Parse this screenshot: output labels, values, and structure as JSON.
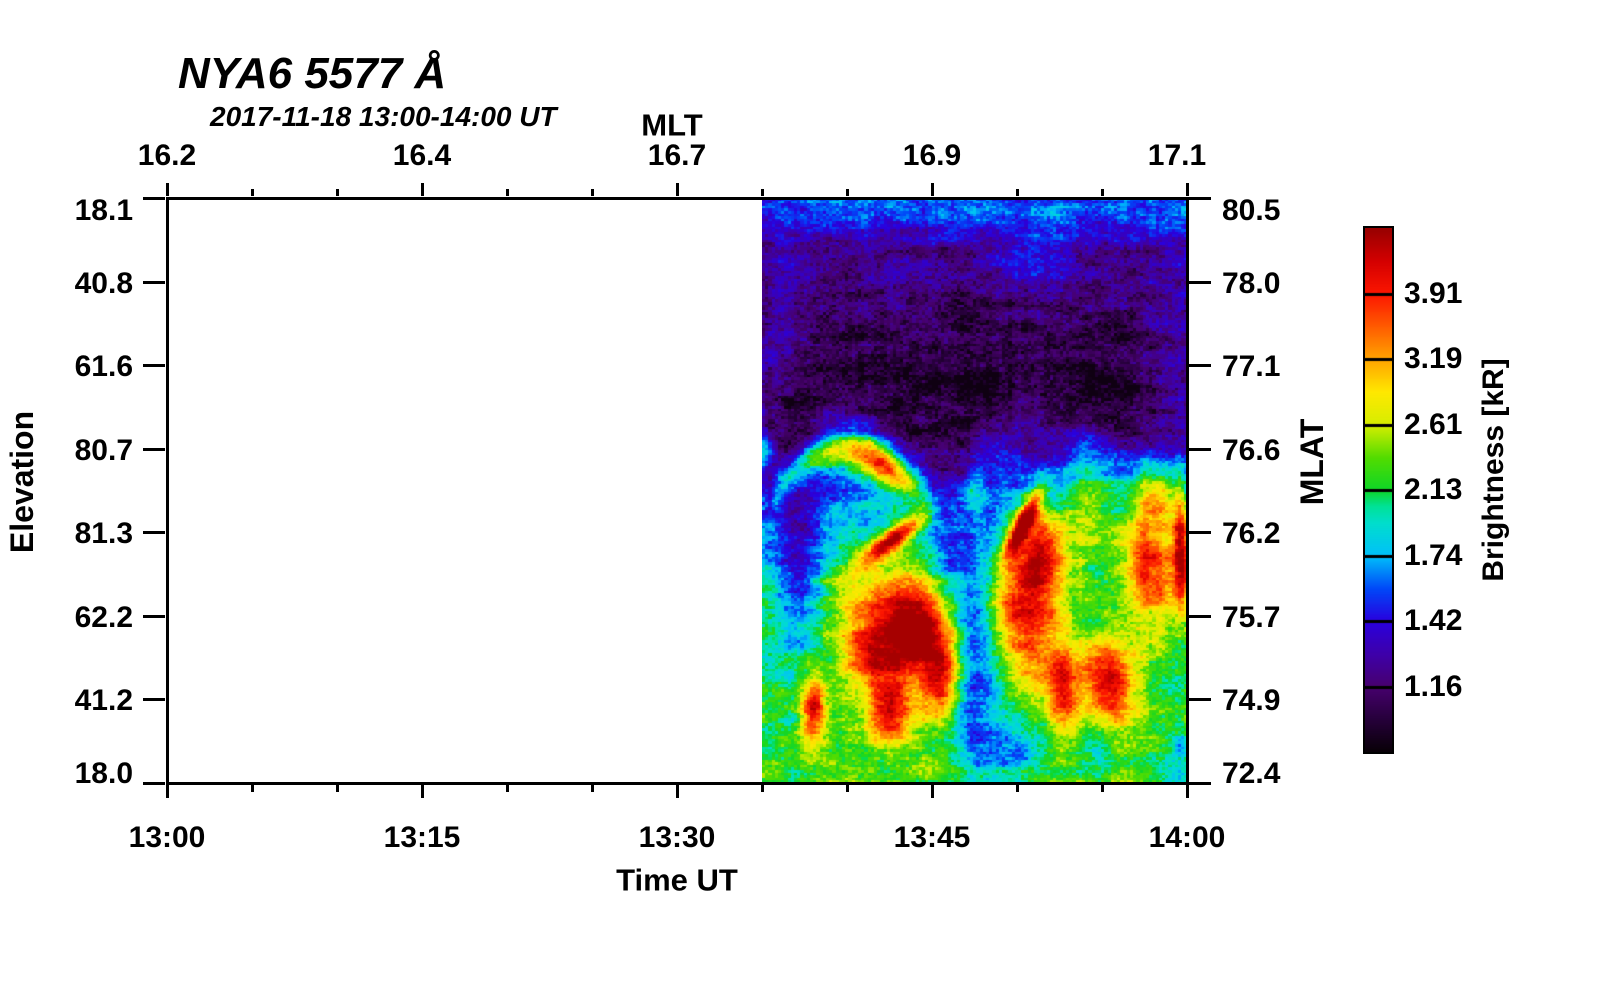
{
  "page": {
    "background": "#ffffff"
  },
  "chart_data": {
    "type": "heatmap",
    "title": "NYA6 5577 Å",
    "subtitle": "2017-11-18 13:00-14:00 UT",
    "station": "NYA6",
    "emission_line_angstrom": "5577",
    "axes": {
      "top": {
        "label": "MLT",
        "tick_labels": [
          "16.2",
          "16.4",
          "16.7",
          "16.9",
          "17.1"
        ],
        "minor_ticks_per_interval": 2
      },
      "bottom": {
        "label": "Time UT",
        "tick_labels": [
          "13:00",
          "13:15",
          "13:30",
          "13:45",
          "14:00"
        ],
        "minor_ticks_per_interval": 2
      },
      "left": {
        "label": "Elevation",
        "tick_labels": [
          "18.1",
          "40.8",
          "61.6",
          "80.7",
          "81.3",
          "62.2",
          "41.2",
          "18.0"
        ]
      },
      "right": {
        "label": "MLAT",
        "tick_labels": [
          "80.5",
          "78.0",
          "77.1",
          "76.6",
          "76.2",
          "75.7",
          "74.9",
          "72.4"
        ]
      }
    },
    "colorbar": {
      "label": "Brightness [kR]",
      "tick_labels": [
        "3.91",
        "3.19",
        "2.61",
        "2.13",
        "1.74",
        "1.42",
        "1.16"
      ],
      "n_segments": 8,
      "scale": "log"
    },
    "data_coverage": {
      "start": "13:35",
      "end": "14:00",
      "start_fraction": 0.5833
    },
    "colormap_stops": [
      [
        0.0,
        [
          8,
          0,
          6
        ]
      ],
      [
        0.0625,
        [
          38,
          0,
          58
        ]
      ],
      [
        0.125,
        [
          71,
          0,
          110
        ]
      ],
      [
        0.1875,
        [
          62,
          0,
          170
        ]
      ],
      [
        0.25,
        [
          42,
          0,
          222
        ]
      ],
      [
        0.3125,
        [
          0,
          72,
          248
        ]
      ],
      [
        0.375,
        [
          0,
          192,
          250
        ]
      ],
      [
        0.4375,
        [
          0,
          222,
          205
        ]
      ],
      [
        0.47,
        [
          0,
          226,
          150
        ]
      ],
      [
        0.5,
        [
          14,
          214,
          40
        ]
      ],
      [
        0.5625,
        [
          82,
          220,
          0
        ]
      ],
      [
        0.625,
        [
          214,
          238,
          0
        ]
      ],
      [
        0.6875,
        [
          255,
          232,
          0
        ]
      ],
      [
        0.75,
        [
          255,
          164,
          0
        ]
      ],
      [
        0.8125,
        [
          255,
          92,
          0
        ]
      ],
      [
        0.875,
        [
          252,
          22,
          0
        ]
      ],
      [
        0.9375,
        [
          212,
          0,
          0
        ]
      ],
      [
        1.0,
        [
          152,
          0,
          0
        ]
      ]
    ],
    "field": {
      "profile": [
        [
          0.0,
          0.31
        ],
        [
          0.03,
          0.295
        ],
        [
          0.055,
          0.235
        ],
        [
          0.09,
          0.165
        ],
        [
          0.13,
          0.15
        ],
        [
          0.22,
          0.135
        ],
        [
          0.32,
          0.13
        ],
        [
          0.4,
          0.15
        ],
        [
          0.45,
          0.205
        ],
        [
          0.5,
          0.29
        ],
        [
          0.55,
          0.38
        ],
        [
          0.6,
          0.45
        ],
        [
          0.66,
          0.49
        ],
        [
          0.72,
          0.505
        ],
        [
          0.8,
          0.51
        ],
        [
          0.88,
          0.515
        ],
        [
          0.94,
          0.52
        ],
        [
          1.0,
          0.545
        ]
      ],
      "blobs": [
        [
          0.2,
          0.32,
          0.105,
          0.095,
          -0.08
        ],
        [
          0.5,
          0.34,
          0.105,
          0.105,
          -0.09
        ],
        [
          0.78,
          0.31,
          0.085,
          0.085,
          -0.065
        ],
        [
          0.9,
          0.39,
          0.075,
          0.085,
          -0.055
        ],
        [
          0.1,
          0.39,
          0.055,
          0.065,
          -0.055
        ],
        [
          0.35,
          0.42,
          0.06,
          0.055,
          -0.05
        ],
        [
          0.64,
          0.115,
          0.08,
          0.045,
          0.09
        ],
        [
          0.04,
          0.24,
          0.035,
          0.09,
          0.07
        ],
        [
          0.97,
          0.27,
          0.04,
          0.12,
          0.07
        ],
        [
          0.005,
          0.43,
          0.015,
          0.025,
          0.25
        ],
        [
          0.3,
          0.7,
          0.1,
          0.065,
          0.26
        ],
        [
          0.335,
          0.745,
          0.05,
          0.05,
          0.33
        ],
        [
          0.25,
          0.79,
          0.04,
          0.035,
          0.28
        ],
        [
          0.41,
          0.77,
          0.05,
          0.06,
          0.24
        ],
        [
          0.63,
          0.7,
          0.05,
          0.11,
          0.38
        ],
        [
          0.66,
          0.6,
          0.04,
          0.05,
          0.3
        ],
        [
          0.91,
          0.62,
          0.045,
          0.07,
          0.42
        ],
        [
          0.985,
          0.6,
          0.015,
          0.07,
          0.48
        ],
        [
          0.93,
          0.5,
          0.04,
          0.04,
          0.28
        ],
        [
          0.81,
          0.83,
          0.05,
          0.055,
          0.45
        ],
        [
          0.71,
          0.84,
          0.025,
          0.06,
          0.38
        ],
        [
          0.3,
          0.875,
          0.035,
          0.04,
          0.42
        ],
        [
          0.12,
          0.875,
          0.02,
          0.04,
          0.4
        ],
        [
          0.5,
          0.5,
          0.022,
          0.03,
          0.18
        ],
        [
          0.77,
          0.55,
          0.05,
          0.05,
          0.18
        ],
        [
          0.76,
          0.47,
          0.04,
          0.05,
          0.15
        ],
        [
          0.55,
          0.43,
          0.05,
          0.04,
          0.1
        ],
        [
          0.85,
          0.46,
          0.06,
          0.05,
          0.1
        ],
        [
          0.42,
          0.83,
          0.03,
          0.05,
          0.3
        ],
        [
          0.57,
          0.7,
          0.03,
          0.05,
          0.15
        ],
        [
          0.5,
          0.78,
          0.05,
          0.13,
          -0.26
        ],
        [
          0.085,
          0.62,
          0.045,
          0.12,
          -0.24
        ],
        [
          0.55,
          0.95,
          0.05,
          0.05,
          -0.11
        ],
        [
          0.78,
          0.93,
          0.04,
          0.05,
          -0.09
        ],
        [
          0.435,
          0.62,
          0.03,
          0.05,
          -0.12
        ],
        [
          0.73,
          0.81,
          0.03,
          0.06,
          -0.1
        ],
        [
          0.63,
          0.93,
          0.04,
          0.05,
          -0.1
        ],
        [
          0.99,
          0.97,
          0.04,
          0.04,
          -0.12
        ]
      ],
      "streaks": [
        [
          0.305,
          0.585,
          0.055,
          0.013,
          -28,
          0.52
        ],
        [
          0.615,
          0.555,
          0.05,
          0.013,
          -55,
          0.55
        ]
      ],
      "arc": {
        "u0": 0.02,
        "u1": 0.4,
        "v_base": 0.515,
        "dip": 0.085,
        "sigma": 0.02,
        "amp": 0.4,
        "head_u": 0.28,
        "head_amp": 0.24,
        "head_sigma": 0.045
      },
      "noise": {
        "octave1": 0.1,
        "octave2": 0.085,
        "cell": 0.085,
        "column": 0.04
      }
    }
  }
}
